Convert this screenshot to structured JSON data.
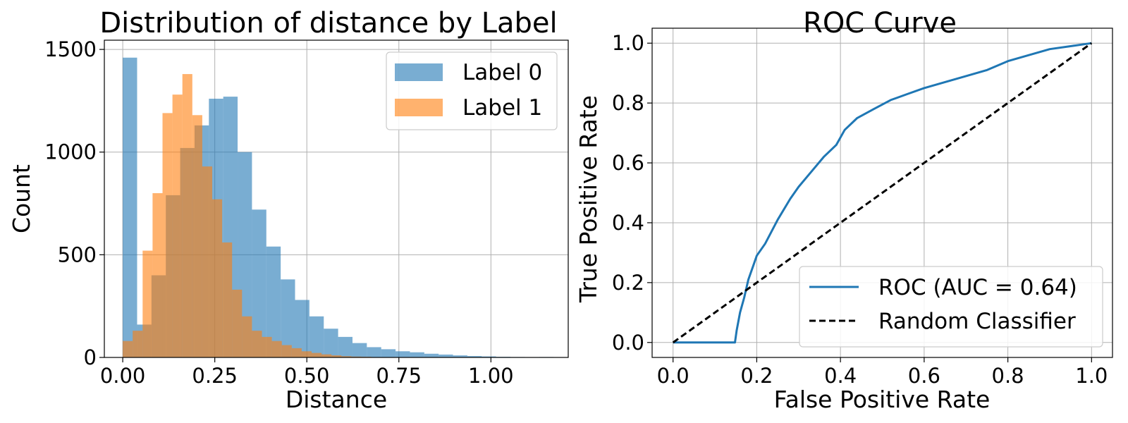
{
  "chart_data": [
    {
      "type": "histogram",
      "title": "Distribution of distance by Label",
      "xlabel": "Distance",
      "ylabel": "Count",
      "xlim": [
        -0.05,
        1.21
      ],
      "ylim": [
        0,
        1500
      ],
      "xticks": [
        0.0,
        0.25,
        0.5,
        0.75,
        1.0
      ],
      "xtick_labels": [
        "0.00",
        "0.25",
        "0.50",
        "0.75",
        "1.00"
      ],
      "yticks": [
        0,
        500,
        1000,
        1500
      ],
      "ytick_labels": [
        "0",
        "500",
        "1000",
        "1500"
      ],
      "grid": true,
      "legend_position": "upper-right",
      "series": [
        {
          "name": "Label 0",
          "color": "#1f77b4",
          "opacity": 0.6,
          "bins": [
            {
              "x0": 0.0,
              "x1": 0.039,
              "count": 1460
            },
            {
              "x0": 0.039,
              "x1": 0.078,
              "count": 160
            },
            {
              "x0": 0.078,
              "x1": 0.117,
              "count": 400
            },
            {
              "x0": 0.117,
              "x1": 0.156,
              "count": 790
            },
            {
              "x0": 0.156,
              "x1": 0.195,
              "count": 1020
            },
            {
              "x0": 0.195,
              "x1": 0.234,
              "count": 1130
            },
            {
              "x0": 0.234,
              "x1": 0.273,
              "count": 1260
            },
            {
              "x0": 0.273,
              "x1": 0.312,
              "count": 1270
            },
            {
              "x0": 0.312,
              "x1": 0.351,
              "count": 1000
            },
            {
              "x0": 0.351,
              "x1": 0.39,
              "count": 720
            },
            {
              "x0": 0.39,
              "x1": 0.429,
              "count": 540
            },
            {
              "x0": 0.429,
              "x1": 0.468,
              "count": 380
            },
            {
              "x0": 0.468,
              "x1": 0.507,
              "count": 280
            },
            {
              "x0": 0.507,
              "x1": 0.546,
              "count": 200
            },
            {
              "x0": 0.546,
              "x1": 0.585,
              "count": 140
            },
            {
              "x0": 0.585,
              "x1": 0.624,
              "count": 100
            },
            {
              "x0": 0.624,
              "x1": 0.663,
              "count": 70
            },
            {
              "x0": 0.663,
              "x1": 0.702,
              "count": 50
            },
            {
              "x0": 0.702,
              "x1": 0.741,
              "count": 40
            },
            {
              "x0": 0.741,
              "x1": 0.78,
              "count": 30
            },
            {
              "x0": 0.78,
              "x1": 0.819,
              "count": 25
            },
            {
              "x0": 0.819,
              "x1": 0.858,
              "count": 18
            },
            {
              "x0": 0.858,
              "x1": 0.897,
              "count": 14
            },
            {
              "x0": 0.897,
              "x1": 0.936,
              "count": 10
            },
            {
              "x0": 0.936,
              "x1": 0.975,
              "count": 7
            },
            {
              "x0": 0.975,
              "x1": 1.014,
              "count": 5
            },
            {
              "x0": 1.014,
              "x1": 1.053,
              "count": 3
            },
            {
              "x0": 1.053,
              "x1": 1.092,
              "count": 2
            },
            {
              "x0": 1.092,
              "x1": 1.131,
              "count": 1
            },
            {
              "x0": 1.131,
              "x1": 1.17,
              "count": 2
            }
          ]
        },
        {
          "name": "Label 1",
          "color": "#ff7f0e",
          "opacity": 0.6,
          "bins": [
            {
              "x0": 0.0,
              "x1": 0.027,
              "count": 80
            },
            {
              "x0": 0.027,
              "x1": 0.054,
              "count": 130
            },
            {
              "x0": 0.054,
              "x1": 0.081,
              "count": 520
            },
            {
              "x0": 0.081,
              "x1": 0.108,
              "count": 800
            },
            {
              "x0": 0.108,
              "x1": 0.135,
              "count": 1190
            },
            {
              "x0": 0.135,
              "x1": 0.162,
              "count": 1280
            },
            {
              "x0": 0.162,
              "x1": 0.189,
              "count": 1380
            },
            {
              "x0": 0.189,
              "x1": 0.216,
              "count": 1180
            },
            {
              "x0": 0.216,
              "x1": 0.243,
              "count": 930
            },
            {
              "x0": 0.243,
              "x1": 0.27,
              "count": 770
            },
            {
              "x0": 0.27,
              "x1": 0.297,
              "count": 560
            },
            {
              "x0": 0.297,
              "x1": 0.324,
              "count": 330
            },
            {
              "x0": 0.324,
              "x1": 0.351,
              "count": 200
            },
            {
              "x0": 0.351,
              "x1": 0.378,
              "count": 130
            },
            {
              "x0": 0.378,
              "x1": 0.405,
              "count": 100
            },
            {
              "x0": 0.405,
              "x1": 0.432,
              "count": 80
            },
            {
              "x0": 0.432,
              "x1": 0.459,
              "count": 60
            },
            {
              "x0": 0.459,
              "x1": 0.486,
              "count": 45
            },
            {
              "x0": 0.486,
              "x1": 0.513,
              "count": 30
            },
            {
              "x0": 0.513,
              "x1": 0.54,
              "count": 22
            },
            {
              "x0": 0.54,
              "x1": 0.567,
              "count": 15
            },
            {
              "x0": 0.567,
              "x1": 0.594,
              "count": 10
            },
            {
              "x0": 0.594,
              "x1": 0.621,
              "count": 6
            },
            {
              "x0": 0.621,
              "x1": 0.648,
              "count": 4
            },
            {
              "x0": 0.648,
              "x1": 0.675,
              "count": 3
            }
          ]
        }
      ]
    },
    {
      "type": "line",
      "title": "ROC Curve",
      "xlabel": "False Positive Rate",
      "ylabel": "True Positive Rate",
      "xlim": [
        -0.05,
        1.05
      ],
      "ylim": [
        -0.05,
        1.05
      ],
      "xticks": [
        0.0,
        0.2,
        0.4,
        0.6,
        0.8,
        1.0
      ],
      "xtick_labels": [
        "0.0",
        "0.2",
        "0.4",
        "0.6",
        "0.8",
        "1.0"
      ],
      "yticks": [
        0.0,
        0.2,
        0.4,
        0.6,
        0.8,
        1.0
      ],
      "ytick_labels": [
        "0.0",
        "0.2",
        "0.4",
        "0.6",
        "0.8",
        "1.0"
      ],
      "grid": true,
      "legend_position": "lower-right",
      "series": [
        {
          "name": "ROC (AUC = 0.64)",
          "color": "#1f77b4",
          "style": "solid",
          "x": [
            0.0,
            0.148,
            0.152,
            0.16,
            0.17,
            0.18,
            0.19,
            0.2,
            0.22,
            0.25,
            0.28,
            0.3,
            0.33,
            0.36,
            0.39,
            0.41,
            0.44,
            0.48,
            0.52,
            0.56,
            0.6,
            0.65,
            0.7,
            0.75,
            0.8,
            0.85,
            0.9,
            0.95,
            1.0
          ],
          "y": [
            0.0,
            0.0,
            0.04,
            0.1,
            0.15,
            0.21,
            0.25,
            0.29,
            0.33,
            0.41,
            0.48,
            0.52,
            0.57,
            0.62,
            0.66,
            0.71,
            0.75,
            0.78,
            0.81,
            0.83,
            0.85,
            0.87,
            0.89,
            0.91,
            0.94,
            0.96,
            0.98,
            0.99,
            1.0
          ]
        },
        {
          "name": "Random Classifier",
          "color": "#000000",
          "style": "dashed",
          "x": [
            0.0,
            1.0
          ],
          "y": [
            0.0,
            1.0
          ]
        }
      ]
    }
  ]
}
